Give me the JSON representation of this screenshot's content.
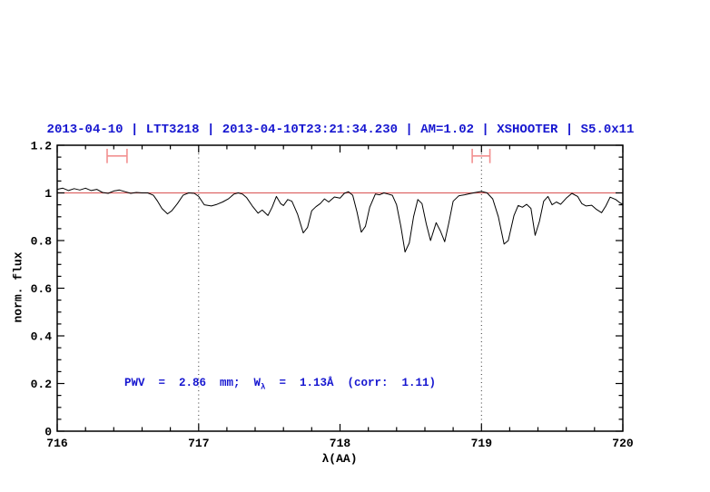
{
  "title": "2013-04-10 | LTT3218 | 2013-04-10T23:21:34.230 | AM=1.02 | XSHOOTER | S5.0x11",
  "annotation": {
    "prefix": "PWV  =  2.86  mm;  W",
    "sub": "λ",
    "suffix": "  =  1.13Å  (corr:  1.11)"
  },
  "colors": {
    "title_blue": "#1616d0",
    "annotation_blue": "#1616d0",
    "continuum_red": "#dd6666",
    "marker_red": "#f29090",
    "spectrum_black": "#000000",
    "dotted_guide": "#333333"
  },
  "chart_data": {
    "type": "line",
    "title": "2013-04-10 | LTT3218 | 2013-04-10T23:21:34.230 | AM=1.02 | XSHOOTER | S5.0x11",
    "xlabel": "λ(AA)",
    "ylabel": "norm. flux",
    "xlim": [
      716,
      720
    ],
    "ylim": [
      0,
      1.2
    ],
    "grid": false,
    "legend": false,
    "x_ticks": {
      "values": [
        716,
        717,
        718,
        719,
        720
      ],
      "labels": [
        "716",
        "717",
        "718",
        "719",
        "720"
      ],
      "minor_step": 0.2
    },
    "y_ticks": {
      "values": [
        0,
        0.2,
        0.4,
        0.6,
        0.8,
        1,
        1.2
      ],
      "labels": [
        "0",
        "0.2",
        "0.4",
        "0.6",
        "0.8",
        "1",
        "1.2"
      ],
      "minor_step": 0.05
    },
    "dotted_lines_x": [
      717,
      719
    ],
    "continuum_y": 1.0,
    "band_markers": [
      {
        "x0": 716.353,
        "x1": 716.494,
        "y": 1.155,
        "cap_half": 0.03
      },
      {
        "x0": 718.935,
        "x1": 719.06,
        "y": 1.155,
        "cap_half": 0.03
      }
    ],
    "series": [
      {
        "name": "normalized spectrum",
        "points": [
          [
            716.0,
            1.015
          ],
          [
            716.04,
            1.02
          ],
          [
            716.08,
            1.01
          ],
          [
            716.12,
            1.018
          ],
          [
            716.16,
            1.012
          ],
          [
            716.2,
            1.02
          ],
          [
            716.24,
            1.01
          ],
          [
            716.28,
            1.015
          ],
          [
            716.32,
            1.002
          ],
          [
            716.36,
            0.998
          ],
          [
            716.4,
            1.008
          ],
          [
            716.44,
            1.012
          ],
          [
            716.48,
            1.005
          ],
          [
            716.52,
            0.998
          ],
          [
            716.56,
            1.002
          ],
          [
            716.6,
            1.0
          ],
          [
            716.64,
            1.0
          ],
          [
            716.68,
            0.99
          ],
          [
            716.71,
            0.965
          ],
          [
            716.74,
            0.935
          ],
          [
            716.78,
            0.912
          ],
          [
            716.81,
            0.925
          ],
          [
            716.85,
            0.955
          ],
          [
            716.89,
            0.99
          ],
          [
            716.93,
            1.0
          ],
          [
            716.97,
            0.998
          ],
          [
            717.0,
            0.985
          ],
          [
            717.04,
            0.95
          ],
          [
            717.09,
            0.945
          ],
          [
            717.13,
            0.952
          ],
          [
            717.17,
            0.962
          ],
          [
            717.21,
            0.975
          ],
          [
            717.25,
            0.995
          ],
          [
            717.28,
            1.0
          ],
          [
            717.31,
            0.995
          ],
          [
            717.34,
            0.98
          ],
          [
            717.38,
            0.945
          ],
          [
            717.42,
            0.915
          ],
          [
            717.45,
            0.928
          ],
          [
            717.49,
            0.905
          ],
          [
            717.52,
            0.94
          ],
          [
            717.55,
            0.985
          ],
          [
            717.58,
            0.955
          ],
          [
            717.6,
            0.947
          ],
          [
            717.63,
            0.972
          ],
          [
            717.66,
            0.965
          ],
          [
            717.7,
            0.91
          ],
          [
            717.74,
            0.832
          ],
          [
            717.77,
            0.855
          ],
          [
            717.8,
            0.925
          ],
          [
            717.83,
            0.942
          ],
          [
            717.86,
            0.955
          ],
          [
            717.89,
            0.975
          ],
          [
            717.92,
            0.962
          ],
          [
            717.96,
            0.983
          ],
          [
            718.0,
            0.978
          ],
          [
            718.03,
            0.998
          ],
          [
            718.06,
            1.005
          ],
          [
            718.09,
            0.99
          ],
          [
            718.12,
            0.92
          ],
          [
            718.15,
            0.835
          ],
          [
            718.18,
            0.86
          ],
          [
            718.21,
            0.94
          ],
          [
            718.25,
            0.995
          ],
          [
            718.28,
            0.992
          ],
          [
            718.31,
            1.0
          ],
          [
            718.34,
            0.995
          ],
          [
            718.37,
            0.99
          ],
          [
            718.4,
            0.95
          ],
          [
            718.43,
            0.86
          ],
          [
            718.46,
            0.752
          ],
          [
            718.49,
            0.79
          ],
          [
            718.52,
            0.9
          ],
          [
            718.55,
            0.972
          ],
          [
            718.58,
            0.955
          ],
          [
            718.61,
            0.87
          ],
          [
            718.64,
            0.8
          ],
          [
            718.68,
            0.875
          ],
          [
            718.71,
            0.84
          ],
          [
            718.74,
            0.795
          ],
          [
            718.77,
            0.875
          ],
          [
            718.8,
            0.965
          ],
          [
            718.84,
            0.988
          ],
          [
            718.88,
            0.992
          ],
          [
            718.92,
            0.997
          ],
          [
            718.96,
            1.002
          ],
          [
            719.0,
            1.006
          ],
          [
            719.04,
            1.0
          ],
          [
            719.08,
            0.975
          ],
          [
            719.12,
            0.9
          ],
          [
            719.16,
            0.785
          ],
          [
            719.19,
            0.8
          ],
          [
            719.23,
            0.905
          ],
          [
            719.26,
            0.947
          ],
          [
            719.29,
            0.94
          ],
          [
            719.32,
            0.952
          ],
          [
            719.35,
            0.935
          ],
          [
            719.38,
            0.822
          ],
          [
            719.41,
            0.88
          ],
          [
            719.44,
            0.965
          ],
          [
            719.47,
            0.985
          ],
          [
            719.5,
            0.95
          ],
          [
            719.53,
            0.962
          ],
          [
            719.56,
            0.952
          ],
          [
            719.6,
            0.978
          ],
          [
            719.64,
            0.998
          ],
          [
            719.68,
            0.985
          ],
          [
            719.71,
            0.955
          ],
          [
            719.74,
            0.945
          ],
          [
            719.78,
            0.948
          ],
          [
            719.81,
            0.932
          ],
          [
            719.85,
            0.917
          ],
          [
            719.88,
            0.945
          ],
          [
            719.91,
            0.982
          ],
          [
            719.95,
            0.972
          ],
          [
            719.98,
            0.958
          ],
          [
            720.0,
            0.952
          ]
        ]
      }
    ]
  }
}
